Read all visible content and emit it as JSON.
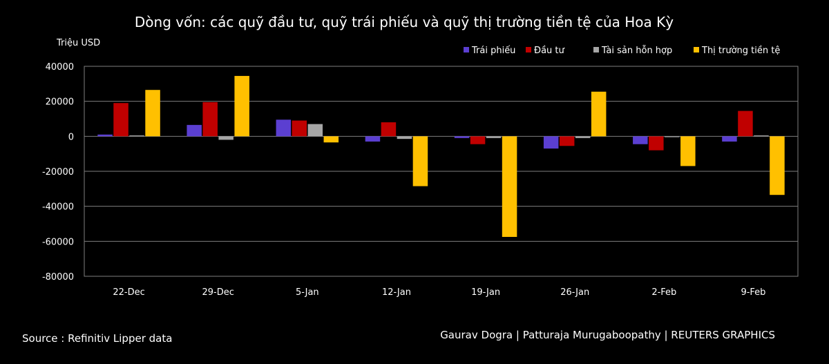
{
  "chart_data": {
    "type": "bar",
    "title": "Dòng vốn: các quỹ đầu tư, quỹ trái phiếu và quỹ thị trường tiền tệ của Hoa Kỳ",
    "ylabel": "Triệu USD",
    "xlabel": "",
    "categories": [
      "22-Dec",
      "29-Dec",
      "5-Jan",
      "12-Jan",
      "19-Jan",
      "26-Jan",
      "2-Feb",
      "9-Feb"
    ],
    "ylim": [
      -80000,
      40000
    ],
    "yticks": [
      40000,
      20000,
      0,
      -20000,
      -40000,
      -60000,
      -80000
    ],
    "grid": true,
    "legend_position": "top-right",
    "series": [
      {
        "name": "Trái phiếu",
        "color": "#5b3fd1",
        "values": [
          1000,
          6500,
          9500,
          -3000,
          -1000,
          -7000,
          -4500,
          -3000
        ]
      },
      {
        "name": "Đầu tư",
        "color": "#c00000",
        "values": [
          19000,
          19500,
          9000,
          8000,
          -4500,
          -5500,
          -8000,
          14500
        ]
      },
      {
        "name": "Tài sản hỗn hợp",
        "color": "#a6a6a6",
        "values": [
          500,
          -2000,
          7000,
          -1500,
          -1000,
          -1000,
          -500,
          500
        ]
      },
      {
        "name": "Thị trường tiền tệ",
        "color": "#ffc000",
        "values": [
          26500,
          34500,
          -3500,
          -28500,
          -57500,
          25500,
          -17000,
          -33500
        ]
      }
    ]
  },
  "footer": {
    "source": "Source : Refinitiv Lipper data",
    "credit": "Gaurav Dogra | Patturaja Murugaboopathy | REUTERS GRAPHICS"
  }
}
